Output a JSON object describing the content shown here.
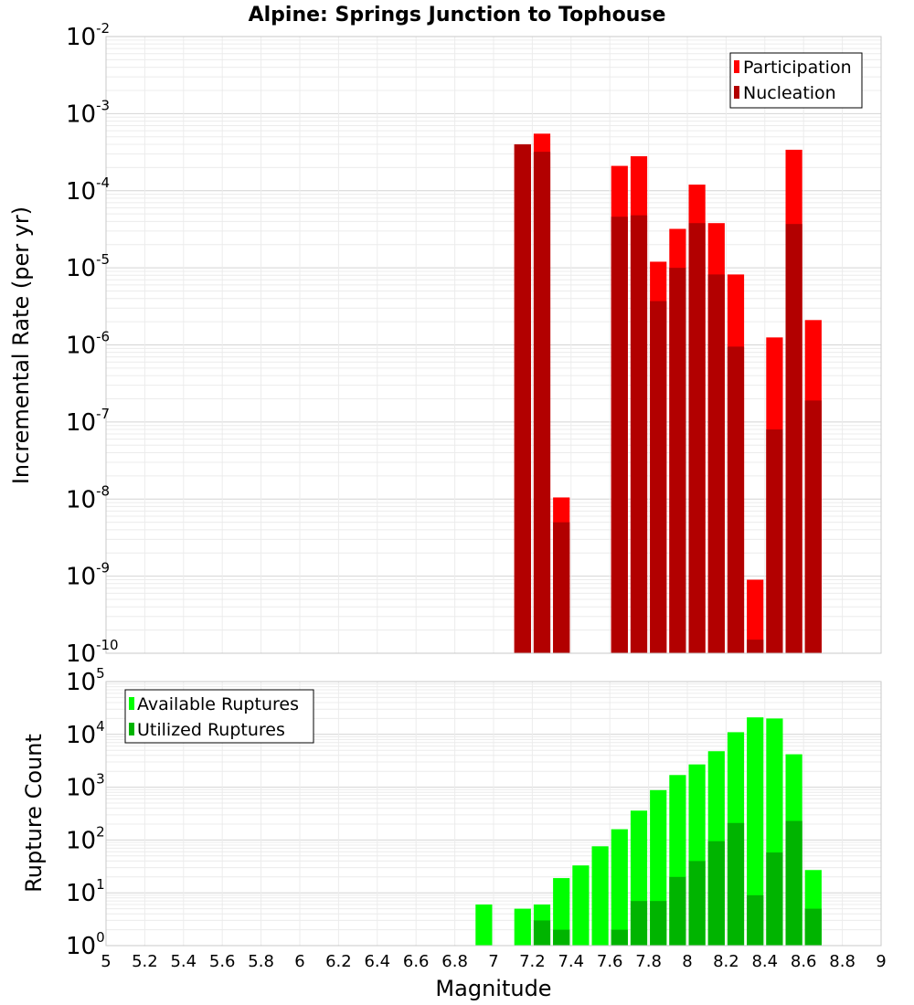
{
  "chart_data": [
    {
      "type": "bar",
      "title": "Alpine: Springs Junction to Tophouse",
      "ylabel": "Incremental Rate (per yr)",
      "xlabel": "",
      "yscale": "log",
      "ylim_exp": [
        -10,
        -2
      ],
      "xlim": [
        5,
        9
      ],
      "legend_position": "top-right",
      "grid": true,
      "series": [
        {
          "name": "Participation",
          "color": "#ff0000",
          "x": [
            7.15,
            7.25,
            7.35,
            7.65,
            7.75,
            7.85,
            7.95,
            8.05,
            8.15,
            8.25,
            8.35,
            8.45,
            8.55,
            8.65
          ],
          "values": [
            0.0004,
            0.00055,
            1.05e-08,
            0.00021,
            0.00028,
            1.2e-05,
            3.2e-05,
            0.00012,
            3.8e-05,
            8.2e-06,
            9e-10,
            1.25e-06,
            0.00034,
            2.1e-06
          ]
        },
        {
          "name": "Nucleation",
          "color": "#b20000",
          "x": [
            7.15,
            7.25,
            7.35,
            7.65,
            7.75,
            7.85,
            7.95,
            8.05,
            8.15,
            8.25,
            8.35,
            8.45,
            8.55,
            8.65
          ],
          "values": [
            0.0004,
            0.00032,
            5e-09,
            4.6e-05,
            4.8e-05,
            3.7e-06,
            1e-05,
            3.8e-05,
            8.2e-06,
            9.5e-07,
            1.5e-10,
            8e-08,
            3.7e-05,
            1.9e-07
          ]
        }
      ]
    },
    {
      "type": "bar",
      "title": "",
      "ylabel": "Rupture Count",
      "xlabel": "Magnitude",
      "yscale": "log",
      "ylim_exp": [
        0,
        5
      ],
      "xlim": [
        5,
        9
      ],
      "legend_position": "top-left",
      "grid": true,
      "x_ticks": [
        "5",
        "5.2",
        "5.4",
        "5.6",
        "5.8",
        "6",
        "6.2",
        "6.4",
        "6.6",
        "6.8",
        "7",
        "7.2",
        "7.4",
        "7.6",
        "7.8",
        "8",
        "8.2",
        "8.4",
        "8.6",
        "8.8",
        "9"
      ],
      "series": [
        {
          "name": "Available Ruptures",
          "color": "#00ff00",
          "x": [
            6.95,
            7.15,
            7.25,
            7.35,
            7.45,
            7.55,
            7.65,
            7.75,
            7.85,
            7.95,
            8.05,
            8.15,
            8.25,
            8.35,
            8.45,
            8.55,
            8.65
          ],
          "values": [
            6,
            5,
            6,
            19,
            33,
            76,
            160,
            360,
            880,
            1700,
            2700,
            4800,
            11000,
            21000,
            20000,
            4200,
            27
          ]
        },
        {
          "name": "Utilized Ruptures",
          "color": "#00b400",
          "x": [
            6.95,
            7.15,
            7.25,
            7.35,
            7.45,
            7.55,
            7.65,
            7.75,
            7.85,
            7.95,
            8.05,
            8.15,
            8.25,
            8.35,
            8.45,
            8.55,
            8.65
          ],
          "values": [
            null,
            1,
            3,
            2,
            null,
            null,
            2,
            7,
            7,
            20,
            40,
            95,
            210,
            9,
            58,
            230,
            5
          ]
        }
      ]
    }
  ]
}
